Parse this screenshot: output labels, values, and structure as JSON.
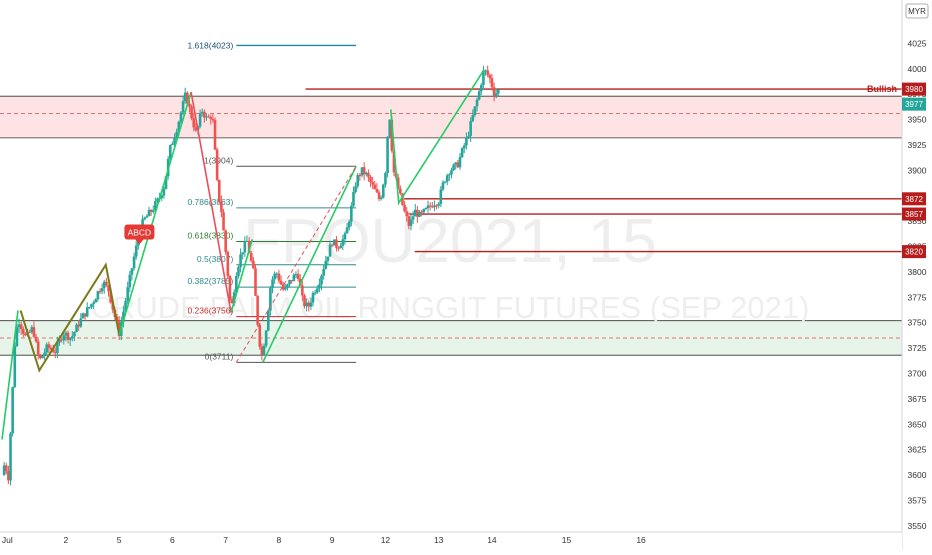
{
  "watermark": {
    "symbol": "FPOU2021, 15",
    "description": "CRUDE PALM OIL RINGGIT FUTURES (SEP 2021)"
  },
  "currency_badge": "MYR",
  "colors": {
    "up": "#26a69a",
    "down": "#ef5350",
    "pattern_green": "#22cc66",
    "pattern_red": "#e8505b",
    "pattern_olive": "#7a7a1a",
    "hline_red": "#b71c1c",
    "resistance_fill": "#fde3e4",
    "support_fill": "#e6f4ea",
    "fib_gray": "#555555",
    "fib_teal": "#2e8b8b",
    "fib_green": "#2e7d32",
    "fib_red": "#c62828",
    "ext_teal": "#1f8aa0",
    "current_price": "#26a69a"
  },
  "chart_data": {
    "type": "candlestick",
    "y_axis": {
      "range": [
        3540,
        4050
      ],
      "ticks": [
        3550,
        3575,
        3600,
        3625,
        3650,
        3675,
        3700,
        3725,
        3750,
        3775,
        3800,
        3825,
        3850,
        3875,
        3900,
        3925,
        3950,
        3975,
        4000,
        4025
      ]
    },
    "x_axis": {
      "range": [
        0,
        16.9
      ],
      "ticks": [
        {
          "x": 0.1,
          "label": "Jul"
        },
        {
          "x": 1.2,
          "label": "2"
        },
        {
          "x": 2.2,
          "label": "5"
        },
        {
          "x": 3.2,
          "label": "6"
        },
        {
          "x": 4.2,
          "label": "7"
        },
        {
          "x": 5.2,
          "label": "8"
        },
        {
          "x": 6.2,
          "label": "9"
        },
        {
          "x": 7.2,
          "label": "12"
        },
        {
          "x": 8.2,
          "label": "13"
        },
        {
          "x": 9.2,
          "label": "14"
        },
        {
          "x": 10.6,
          "label": "15"
        },
        {
          "x": 12.0,
          "label": "16"
        }
      ]
    },
    "price_trace": [
      [
        0.0,
        3600
      ],
      [
        0.05,
        3612
      ],
      [
        0.12,
        3598
      ],
      [
        0.25,
        3740
      ],
      [
        0.32,
        3752
      ],
      [
        0.45,
        3735
      ],
      [
        0.58,
        3745
      ],
      [
        0.7,
        3712
      ],
      [
        0.85,
        3726
      ],
      [
        1.0,
        3722
      ],
      [
        1.15,
        3740
      ],
      [
        1.3,
        3735
      ],
      [
        1.5,
        3755
      ],
      [
        1.7,
        3770
      ],
      [
        1.9,
        3790
      ],
      [
        2.0,
        3782
      ],
      [
        2.1,
        3760
      ],
      [
        2.2,
        3740
      ],
      [
        2.35,
        3780
      ],
      [
        2.5,
        3820
      ],
      [
        2.65,
        3850
      ],
      [
        2.8,
        3860
      ],
      [
        2.95,
        3872
      ],
      [
        3.05,
        3885
      ],
      [
        3.15,
        3920
      ],
      [
        3.3,
        3945
      ],
      [
        3.45,
        3975
      ],
      [
        3.55,
        3955
      ],
      [
        3.65,
        3935
      ],
      [
        3.75,
        3960
      ],
      [
        3.85,
        3950
      ],
      [
        3.95,
        3955
      ],
      [
        4.05,
        3880
      ],
      [
        4.12,
        3860
      ],
      [
        4.22,
        3810
      ],
      [
        4.3,
        3760
      ],
      [
        4.4,
        3800
      ],
      [
        4.5,
        3820
      ],
      [
        4.6,
        3830
      ],
      [
        4.72,
        3800
      ],
      [
        4.8,
        3750
      ],
      [
        4.87,
        3715
      ],
      [
        4.95,
        3740
      ],
      [
        5.05,
        3790
      ],
      [
        5.15,
        3800
      ],
      [
        5.3,
        3780
      ],
      [
        5.4,
        3790
      ],
      [
        5.55,
        3800
      ],
      [
        5.65,
        3770
      ],
      [
        5.75,
        3765
      ],
      [
        5.85,
        3780
      ],
      [
        5.95,
        3790
      ],
      [
        6.1,
        3815
      ],
      [
        6.2,
        3830
      ],
      [
        6.3,
        3825
      ],
      [
        6.45,
        3835
      ],
      [
        6.55,
        3860
      ],
      [
        6.65,
        3890
      ],
      [
        6.75,
        3900
      ],
      [
        6.85,
        3895
      ],
      [
        7.0,
        3880
      ],
      [
        7.1,
        3870
      ],
      [
        7.2,
        3900
      ],
      [
        7.27,
        3960
      ],
      [
        7.35,
        3900
      ],
      [
        7.45,
        3880
      ],
      [
        7.55,
        3860
      ],
      [
        7.65,
        3845
      ],
      [
        7.75,
        3860
      ],
      [
        7.85,
        3855
      ],
      [
        7.95,
        3860
      ],
      [
        8.1,
        3868
      ],
      [
        8.2,
        3870
      ],
      [
        8.3,
        3890
      ],
      [
        8.4,
        3900
      ],
      [
        8.55,
        3905
      ],
      [
        8.65,
        3920
      ],
      [
        8.75,
        3935
      ],
      [
        8.85,
        3955
      ],
      [
        8.95,
        3975
      ],
      [
        9.05,
        3999
      ],
      [
        9.15,
        3992
      ],
      [
        9.25,
        3975
      ],
      [
        9.35,
        3980
      ]
    ],
    "zones": [
      {
        "name": "resistance",
        "top": 3973,
        "bottom": 3932
      },
      {
        "name": "support",
        "top": 3752,
        "bottom": 3718
      }
    ],
    "zone_midlines": [
      3956,
      3735
    ],
    "harmonic_legs": {
      "olive": [
        [
          0.35,
          3762
        ],
        [
          0.7,
          3703
        ],
        [
          1.95,
          3807
        ],
        [
          2.2,
          3738
        ]
      ],
      "green_left": [
        [
          2.2,
          3738
        ],
        [
          3.55,
          3977
        ]
      ],
      "red_down": [
        [
          3.55,
          3977
        ],
        [
          4.3,
          3760
        ]
      ],
      "green_up": [
        [
          4.3,
          3760
        ],
        [
          4.7,
          3832
        ]
      ],
      "abcd_green": [
        [
          4.9,
          3711
        ],
        [
          6.65,
          3904
        ]
      ],
      "abcd_dashed": [
        [
          4.4,
          3711
        ],
        [
          6.65,
          3904
        ]
      ],
      "right_green": [
        [
          7.3,
          3960
        ],
        [
          7.45,
          3868
        ],
        [
          9.05,
          3999
        ]
      ],
      "left_green": [
        [
          0.0,
          3635
        ],
        [
          0.3,
          3762
        ]
      ]
    },
    "abcd_label": {
      "text": "ABCD",
      "x": 2.58,
      "y": 3825
    },
    "fibonacci": {
      "x_start": 4.4,
      "x_end": 6.65,
      "levels": [
        {
          "label": "1(3904)",
          "value": 3904,
          "color": "fib_gray"
        },
        {
          "label": "0.786(3863)",
          "value": 3863,
          "color": "fib_teal"
        },
        {
          "label": "0.618(3830)",
          "value": 3830,
          "color": "fib_green"
        },
        {
          "label": "0.5(3807)",
          "value": 3807,
          "color": "fib_teal"
        },
        {
          "label": "0.382(3785)",
          "value": 3785,
          "color": "fib_teal"
        },
        {
          "label": "0.236(3756)",
          "value": 3756,
          "color": "fib_red"
        },
        {
          "label": "0(3711)",
          "value": 3711,
          "color": "fib_gray"
        }
      ],
      "extension": {
        "label": "1.618(4023)",
        "value": 4023,
        "color": "ext_teal"
      }
    },
    "horizontal_levels": [
      {
        "value": 3980,
        "from_x": 5.7,
        "label": "3980",
        "tag": "Bullish"
      },
      {
        "value": 3872,
        "from_x": 7.55,
        "label": "3872"
      },
      {
        "value": 3857,
        "from_x": 7.65,
        "label": "3857"
      },
      {
        "value": 3820,
        "from_x": 7.75,
        "label": "3820"
      }
    ],
    "current_price": {
      "value": 3977,
      "label": "3977"
    }
  }
}
